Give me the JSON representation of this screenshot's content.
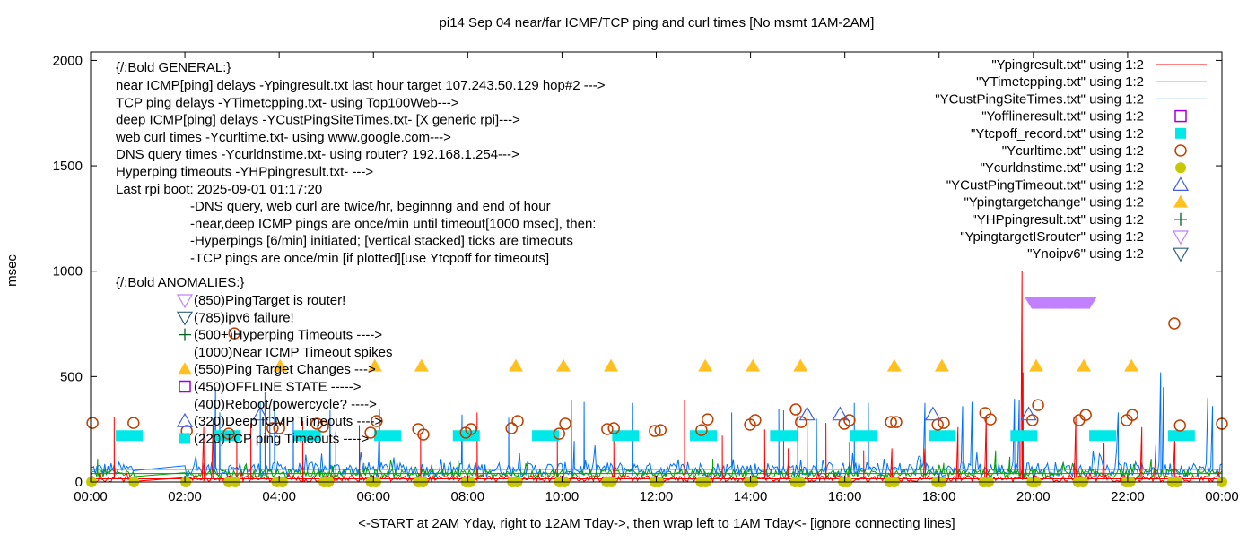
{
  "chart_data": {
    "type": "line",
    "title": "pi14 Sep 04  near/far ICMP/TCP ping and curl times [No msmt 1AM-2AM]",
    "xlabel": "<-START at 2AM Yday, right to 12AM Tday->, then wrap left to 1AM Tday<- [ignore connecting lines]",
    "ylabel": "msec",
    "xlim": [
      0,
      24
    ],
    "ylim": [
      0,
      2040
    ],
    "x_ticks": [
      0,
      2,
      4,
      6,
      8,
      10,
      12,
      14,
      16,
      18,
      20,
      22,
      24
    ],
    "x_tick_labels": [
      "00:00",
      "02:00",
      "04:00",
      "06:00",
      "08:00",
      "10:00",
      "12:00",
      "14:00",
      "16:00",
      "18:00",
      "20:00",
      "22:00",
      "00:00"
    ],
    "y_ticks": [
      0,
      500,
      1000,
      1500,
      2000
    ],
    "y_tick_labels": [
      "0",
      "500",
      "1000",
      "1500",
      "2000"
    ],
    "legend_position": "top-right",
    "legend": [
      {
        "label": "\"Ypingresult.txt\" using 1:2",
        "style": "line",
        "color": "#ff0000"
      },
      {
        "label": "\"YTimetcpping.txt\" using 1:2",
        "style": "line",
        "color": "#00a000"
      },
      {
        "label": "\"YCustPingSiteTimes.txt\" using 1:2",
        "style": "line",
        "color": "#0070ff"
      },
      {
        "label": "\"Yofflineresult.txt\" using 1:2",
        "style": "open-square",
        "color": "#a000e0"
      },
      {
        "label": "\"Ytcpoff_record.txt\" using 1:2",
        "style": "filled-square",
        "color": "#00e8e8"
      },
      {
        "label": "\"Ycurltime.txt\" using 1:2",
        "style": "open-circle",
        "color": "#c04000"
      },
      {
        "label": "\"Ycurldnstime.txt\" using 1:2",
        "style": "filled-circle",
        "color": "#c8c800"
      },
      {
        "label": "\"YCustPingTimeout.txt\" using 1:2",
        "style": "open-triangle",
        "color": "#4060e0"
      },
      {
        "label": "\"Ypingtargetchange\" using 1:2",
        "style": "filled-triangle",
        "color": "#ffc020"
      },
      {
        "label": "\"YHPpingresult.txt\" using 1:2",
        "style": "plus",
        "color": "#006020"
      },
      {
        "label": "\"YpingtargetISrouter\" using 1:2",
        "style": "open-down-triangle",
        "color": "#c080ff"
      },
      {
        "label": "\"Ynoipv6\" using 1:2",
        "style": "open-down-triangle",
        "color": "#306080"
      }
    ],
    "line_series": [
      {
        "name": "Ypingresult.txt",
        "color": "#ff0000",
        "baseline": 15,
        "jitter": 14,
        "gap": [
          0.95,
          2.0
        ],
        "spikes": [
          [
            0.5,
            310
          ],
          [
            2.4,
            260
          ],
          [
            2.6,
            300
          ],
          [
            3.1,
            240
          ],
          [
            3.4,
            280
          ],
          [
            4.5,
            290
          ],
          [
            5.2,
            240
          ],
          [
            5.7,
            270
          ],
          [
            7.0,
            230
          ],
          [
            8.2,
            330
          ],
          [
            9.9,
            220
          ],
          [
            10.2,
            390
          ],
          [
            11.1,
            215
          ],
          [
            12.6,
            390
          ],
          [
            13.4,
            220
          ],
          [
            14.3,
            250
          ],
          [
            14.8,
            160
          ],
          [
            15.6,
            280
          ],
          [
            16.1,
            190
          ],
          [
            16.4,
            150
          ],
          [
            17.0,
            160
          ],
          [
            17.7,
            160
          ],
          [
            18.4,
            260
          ],
          [
            19.0,
            310
          ],
          [
            19.76,
            1000
          ],
          [
            19.78,
            520
          ],
          [
            20.9,
            310
          ],
          [
            21.5,
            185
          ],
          [
            22.3,
            260
          ],
          [
            22.6,
            180
          ],
          [
            23.0,
            210
          ]
        ]
      },
      {
        "name": "YTimetcpping.txt",
        "color": "#00a000",
        "baseline": 40,
        "jitter": 20,
        "gap": [
          0.95,
          2.0
        ],
        "spikes": [
          [
            0.15,
            110
          ],
          [
            5.8,
            90
          ],
          [
            7.8,
            100
          ],
          [
            13.2,
            110
          ],
          [
            15.0,
            330
          ],
          [
            18.1,
            90
          ],
          [
            19.2,
            150
          ],
          [
            19.5,
            120
          ],
          [
            22.5,
            110
          ]
        ]
      },
      {
        "name": "YCustPingSiteTimes.txt",
        "color": "#0070ff",
        "baseline": 60,
        "jitter": 35,
        "gap": [
          0.95,
          2.0
        ],
        "spikes": [
          [
            2.65,
            450
          ],
          [
            2.74,
            330
          ],
          [
            3.6,
            380
          ],
          [
            3.7,
            425
          ],
          [
            3.8,
            360
          ],
          [
            3.9,
            390
          ],
          [
            4.3,
            300
          ],
          [
            5.08,
            340
          ],
          [
            6.13,
            345
          ],
          [
            7.88,
            320
          ],
          [
            8.87,
            305
          ],
          [
            10.26,
            195
          ],
          [
            10.47,
            380
          ],
          [
            11.5,
            375
          ],
          [
            13.6,
            330
          ],
          [
            14.6,
            345
          ],
          [
            14.7,
            340
          ],
          [
            15.2,
            350
          ],
          [
            15.4,
            300
          ],
          [
            16.2,
            375
          ],
          [
            16.5,
            375
          ],
          [
            17.7,
            375
          ],
          [
            18.5,
            360
          ],
          [
            18.7,
            380
          ],
          [
            19.6,
            395
          ],
          [
            19.7,
            390
          ],
          [
            21.8,
            330
          ],
          [
            22.7,
            520
          ],
          [
            22.76,
            450
          ],
          [
            23.7,
            400
          ],
          [
            23.8,
            360
          ]
        ]
      }
    ],
    "point_series": {
      "Ycurltime": [
        [
          0.04,
          280
        ],
        [
          0.91,
          280
        ],
        [
          2.04,
          242
        ],
        [
          2.93,
          229
        ],
        [
          3.05,
          705
        ],
        [
          3.86,
          255
        ],
        [
          4.0,
          255
        ],
        [
          4.8,
          276
        ],
        [
          4.93,
          263
        ],
        [
          5.94,
          234
        ],
        [
          6.07,
          289
        ],
        [
          6.95,
          251
        ],
        [
          7.06,
          225
        ],
        [
          7.96,
          234
        ],
        [
          8.07,
          251
        ],
        [
          8.93,
          255
        ],
        [
          9.06,
          289
        ],
        [
          9.94,
          229
        ],
        [
          10.07,
          276
        ],
        [
          10.96,
          251
        ],
        [
          11.1,
          255
        ],
        [
          11.97,
          242
        ],
        [
          12.09,
          246
        ],
        [
          12.96,
          246
        ],
        [
          13.09,
          297
        ],
        [
          13.99,
          272
        ],
        [
          14.1,
          293
        ],
        [
          14.96,
          344
        ],
        [
          15.07,
          284
        ],
        [
          15.99,
          276
        ],
        [
          16.1,
          293
        ],
        [
          16.98,
          284
        ],
        [
          17.09,
          284
        ],
        [
          17.97,
          272
        ],
        [
          18.1,
          280
        ],
        [
          18.98,
          327
        ],
        [
          19.09,
          297
        ],
        [
          19.98,
          293
        ],
        [
          20.1,
          365
        ],
        [
          20.97,
          293
        ],
        [
          21.11,
          318
        ],
        [
          21.98,
          293
        ],
        [
          22.1,
          318
        ],
        [
          22.99,
          752
        ],
        [
          23.11,
          268
        ],
        [
          24.0,
          276
        ]
      ],
      "Ycurldnstime": [
        [
          0.02,
          0
        ],
        [
          0.92,
          0
        ],
        [
          2.02,
          0
        ],
        [
          2.93,
          0
        ],
        [
          3.07,
          0
        ],
        [
          3.95,
          0
        ],
        [
          4.07,
          0
        ],
        [
          4.95,
          0
        ],
        [
          5.05,
          0
        ],
        [
          5.95,
          0
        ],
        [
          6.05,
          0
        ],
        [
          6.95,
          0
        ],
        [
          7.05,
          0
        ],
        [
          7.97,
          0
        ],
        [
          8.05,
          0
        ],
        [
          8.95,
          0
        ],
        [
          9.05,
          0
        ],
        [
          9.95,
          0
        ],
        [
          10.05,
          0
        ],
        [
          10.95,
          0
        ],
        [
          11.05,
          0
        ],
        [
          11.97,
          0
        ],
        [
          12.05,
          0
        ],
        [
          12.95,
          0
        ],
        [
          13.05,
          0
        ],
        [
          13.97,
          0
        ],
        [
          14.05,
          0
        ],
        [
          14.95,
          0
        ],
        [
          15.05,
          0
        ],
        [
          15.97,
          0
        ],
        [
          16.05,
          0
        ],
        [
          16.95,
          0
        ],
        [
          17.05,
          0
        ],
        [
          17.95,
          0
        ],
        [
          18.05,
          0
        ],
        [
          18.95,
          0
        ],
        [
          19.05,
          0
        ],
        [
          19.97,
          0
        ],
        [
          20.05,
          0
        ],
        [
          20.95,
          0
        ],
        [
          21.05,
          0
        ],
        [
          21.97,
          0
        ],
        [
          22.05,
          0
        ],
        [
          22.95,
          0
        ],
        [
          23.05,
          0
        ],
        [
          24.0,
          0
        ]
      ],
      "Ytcpoff_record": [
        [
          0.82,
          220
        ],
        [
          2.9,
          220
        ],
        [
          4.6,
          220
        ],
        [
          6.3,
          220
        ],
        [
          7.97,
          220
        ],
        [
          9.65,
          220
        ],
        [
          11.35,
          220
        ],
        [
          13.0,
          220
        ],
        [
          14.7,
          220
        ],
        [
          16.4,
          220
        ],
        [
          18.06,
          220
        ],
        [
          19.8,
          220
        ],
        [
          21.47,
          220
        ],
        [
          23.14,
          220
        ]
      ],
      "YCustPingTimeout": [
        [
          3.6,
          320
        ],
        [
          15.2,
          320
        ],
        [
          15.9,
          320
        ],
        [
          17.87,
          320
        ],
        [
          19.9,
          320
        ]
      ],
      "Ypingtargetchange": [
        [
          4.02,
          550
        ],
        [
          6.03,
          550
        ],
        [
          7.02,
          550
        ],
        [
          9.02,
          550
        ],
        [
          10.03,
          550
        ],
        [
          11.04,
          550
        ],
        [
          13.04,
          550
        ],
        [
          14.05,
          550
        ],
        [
          15.06,
          550
        ],
        [
          17.05,
          550
        ],
        [
          18.06,
          550
        ],
        [
          20.06,
          550
        ],
        [
          21.07,
          550
        ],
        [
          22.08,
          550
        ]
      ],
      "YpingtargetISrouter": {
        "from": 19.97,
        "to": 21.2,
        "value": 850
      }
    },
    "annotations": {
      "general_header": "{/:Bold GENERAL:}",
      "general": [
        "near ICMP[ping] delays -Ypingresult.txt last hour target 107.243.50.129 hop#2 --->",
        "TCP ping delays -YTimetcpping.txt- using Top100Web--->",
        "deep ICMP[ping] delays -YCustPingSiteTimes.txt- [X generic rpi]--->",
        "web curl times -Ycurltime.txt- using www.google.com--->",
        "DNS query times -Ycurldnstime.txt- using router? 192.168.1.254--->",
        "Hyperping timeouts -YHPpingresult.txt- --->",
        "Last rpi boot: 2025-09-01 01:17:20"
      ],
      "notes": [
        "-DNS query, web curl are twice/hr, beginnng and end of hour",
        "-near,deep ICMP pings are once/min until timeout[1000 msec], then:",
        "  -Hyperpings [6/min] initiated; [vertical stacked] ticks are timeouts",
        "-TCP pings are once/min [if plotted][use Ytcpoff for timeouts]"
      ],
      "anomalies_header": "{/:Bold ANOMALIES:}",
      "anomalies": [
        {
          "text": "(850)PingTarget is router!",
          "marker": "open-down-triangle",
          "color": "#c080ff"
        },
        {
          "text": "(785)ipv6 failure!",
          "marker": "open-down-triangle",
          "color": "#306080"
        },
        {
          "text": "(500+)Hyperping Timeouts ---->",
          "marker": "plus",
          "color": "#006020"
        },
        {
          "text": "(1000)Near ICMP Timeout spikes",
          "marker": "none",
          "color": "#000000"
        },
        {
          "text": "(550)Ping Target Changes --->",
          "marker": "filled-triangle",
          "color": "#ffc020"
        },
        {
          "text": "(450)OFFLINE STATE ----->",
          "marker": "open-square",
          "color": "#a000e0"
        },
        {
          "text": "(400)Reboot/powercycle? ---->",
          "marker": "none",
          "color": "#000000"
        },
        {
          "text": "(320)Deep ICMP Timeouts ---->",
          "marker": "open-triangle",
          "color": "#4060e0"
        },
        {
          "text": "(220)TCP ping Timeouts ---->",
          "marker": "filled-square",
          "color": "#00e8e8"
        }
      ]
    }
  }
}
